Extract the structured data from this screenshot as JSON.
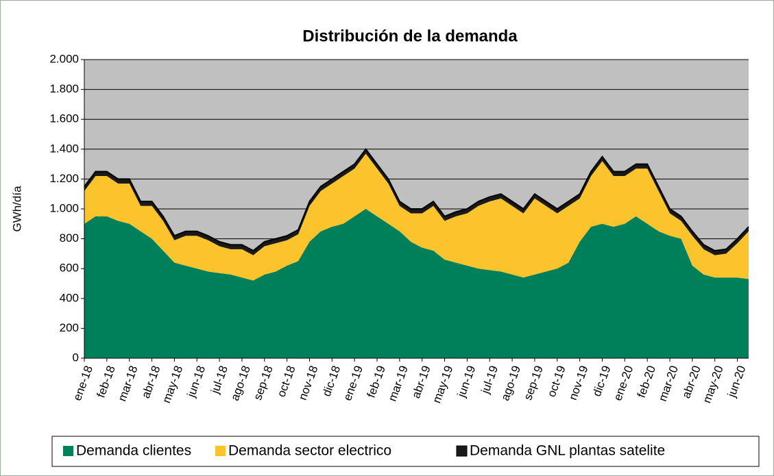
{
  "chart_data": {
    "type": "stacked_area",
    "title": "Distribución de la demanda",
    "y_label": "GWh/día",
    "categories": [
      "ene-18",
      null,
      "feb-18",
      null,
      "mar-18",
      null,
      "abr-18",
      null,
      "may-18",
      null,
      "jun-18",
      null,
      "jul-18",
      null,
      "ago-18",
      null,
      "sep-18",
      null,
      "oct-18",
      null,
      "nov-18",
      null,
      "dic-18",
      null,
      "ene-19",
      null,
      "feb-19",
      null,
      "mar-19",
      null,
      "abr-19",
      null,
      "may-19",
      null,
      "jun-19",
      null,
      "jul-19",
      null,
      "ago-19",
      null,
      "sep-19",
      null,
      "oct-19",
      null,
      "nov-19",
      null,
      "dic-19",
      null,
      "ene-20",
      null,
      "feb-20",
      null,
      "mar-20",
      null,
      "abr-20",
      null,
      "may-20",
      null,
      "jun-20",
      null
    ],
    "series": [
      {
        "name": "Demanda clientes",
        "color": "#00805a",
        "values": [
          900,
          950,
          950,
          920,
          900,
          850,
          800,
          720,
          640,
          620,
          600,
          580,
          570,
          560,
          540,
          520,
          560,
          580,
          620,
          650,
          780,
          850,
          880,
          900,
          950,
          1000,
          950,
          900,
          850,
          780,
          740,
          720,
          660,
          640,
          620,
          600,
          590,
          580,
          560,
          540,
          560,
          580,
          600,
          640,
          780,
          880,
          900,
          880,
          900,
          950,
          900,
          850,
          820,
          800,
          620,
          560,
          540,
          540,
          540,
          530
        ]
      },
      {
        "name": "Demanda sector electrico",
        "color": "#fcc42c",
        "values": [
          220,
          270,
          270,
          250,
          270,
          170,
          220,
          200,
          150,
          200,
          220,
          210,
          180,
          170,
          190,
          170,
          190,
          190,
          170,
          180,
          240,
          270,
          290,
          320,
          320,
          370,
          320,
          270,
          170,
          190,
          230,
          300,
          260,
          310,
          350,
          420,
          460,
          490,
          460,
          430,
          510,
          440,
          370,
          380,
          290,
          340,
          420,
          340,
          320,
          320,
          370,
          270,
          150,
          120,
          200,
          170,
          150,
          160,
          230,
          320
        ]
      },
      {
        "name": "Demanda GNL plantas satelite",
        "color": "#1a1a1a",
        "values": [
          30,
          30,
          30,
          30,
          30,
          30,
          30,
          30,
          30,
          30,
          30,
          30,
          30,
          30,
          30,
          30,
          30,
          30,
          30,
          30,
          30,
          30,
          30,
          30,
          30,
          30,
          30,
          30,
          30,
          30,
          30,
          30,
          30,
          30,
          30,
          30,
          30,
          30,
          30,
          30,
          30,
          30,
          30,
          30,
          30,
          30,
          30,
          30,
          30,
          30,
          30,
          30,
          30,
          30,
          30,
          30,
          30,
          30,
          30,
          30
        ]
      }
    ],
    "ylim": [
      0,
      2000
    ],
    "yticks": [
      0,
      200,
      400,
      600,
      800,
      {
        "value": 1000,
        "label": "1.000"
      },
      {
        "value": 1200,
        "label": "1.200"
      },
      {
        "value": 1400,
        "label": "1.400"
      },
      {
        "value": 1600,
        "label": "1.600"
      },
      {
        "value": 1800,
        "label": "1.800"
      },
      {
        "value": 2000,
        "label": "2.000"
      }
    ],
    "grid": true,
    "legend": "bottom",
    "plot_background": "#c0c0c0"
  }
}
